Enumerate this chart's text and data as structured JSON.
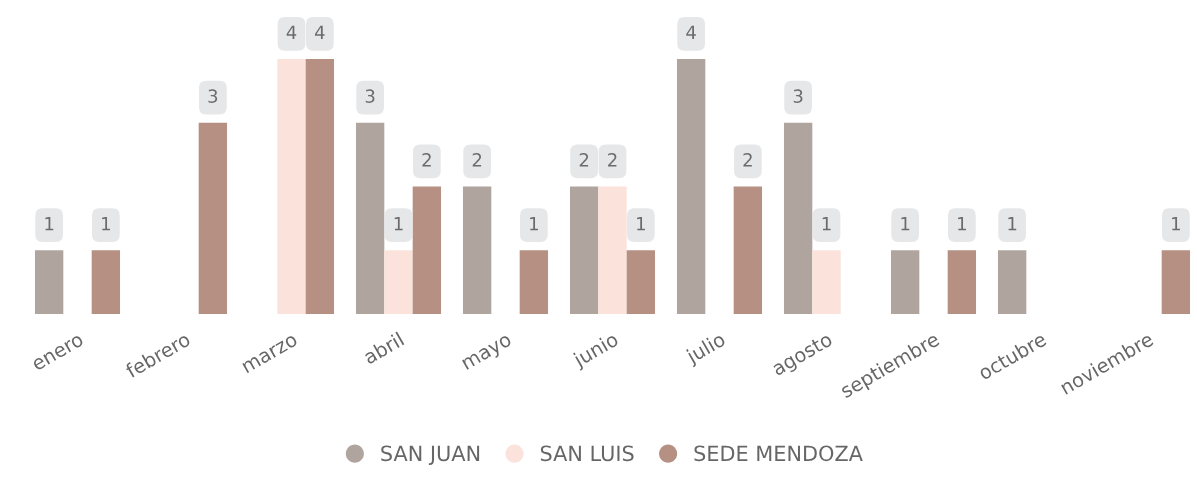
{
  "chart_data": {
    "type": "bar",
    "categories": [
      "enero",
      "febrero",
      "marzo",
      "abril",
      "mayo",
      "junio",
      "julio",
      "agosto",
      "septiembre",
      "octubre",
      "noviembre"
    ],
    "series": [
      {
        "name": "SAN JUAN",
        "color": "#b0a49f",
        "values": [
          1,
          null,
          null,
          3,
          2,
          2,
          4,
          3,
          1,
          1,
          null
        ]
      },
      {
        "name": "SAN LUIS",
        "color": "#fbe3dc",
        "values": [
          null,
          null,
          4,
          1,
          null,
          2,
          null,
          1,
          null,
          null,
          null
        ]
      },
      {
        "name": "SEDE MENDOZA",
        "color": "#b59083",
        "values": [
          1,
          3,
          4,
          2,
          1,
          1,
          2,
          null,
          1,
          null,
          1
        ]
      }
    ],
    "data_labels": true,
    "legend": "bottom",
    "grid": false,
    "tick_labels": "x"
  }
}
